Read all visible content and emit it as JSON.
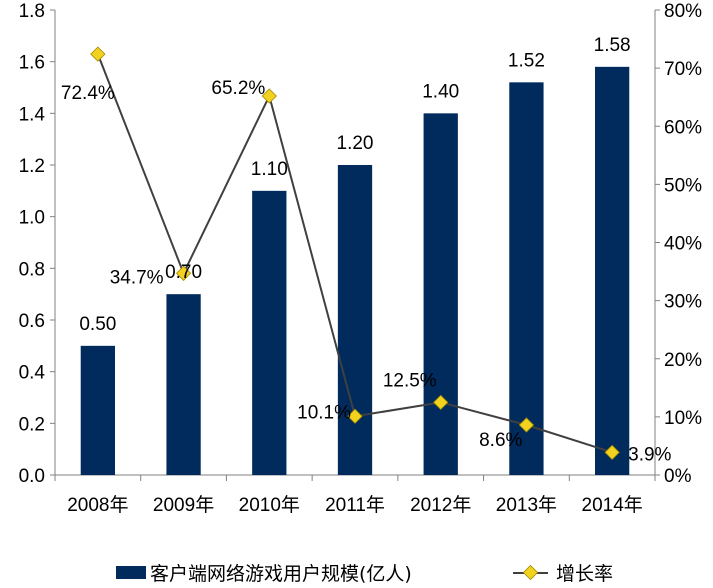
{
  "chart_data": {
    "type": "bar+line",
    "categories": [
      "2008年",
      "2009年",
      "2010年",
      "2011年",
      "2012年",
      "2013年",
      "2014年"
    ],
    "series": [
      {
        "name": "客户端网络游戏用户规模(亿人)",
        "type": "bar",
        "axis": "left",
        "color": "#002b5c",
        "values": [
          0.5,
          0.7,
          1.1,
          1.2,
          1.4,
          1.52,
          1.58
        ],
        "labels": [
          "0.50",
          "0.70",
          "1.10",
          "1.20",
          "1.40",
          "1.52",
          "1.58"
        ]
      },
      {
        "name": "增长率",
        "type": "line",
        "axis": "right",
        "line_color": "#404040",
        "marker_color": "#f2d21f",
        "values": [
          72.4,
          34.7,
          65.2,
          10.1,
          12.5,
          8.6,
          3.9
        ],
        "labels": [
          "72.4%",
          "34.7%",
          "65.2%",
          "10.1%",
          "12.5%",
          "8.6%",
          "3.9%"
        ]
      }
    ],
    "y_left": {
      "min": 0,
      "max": 1.8,
      "ticks": [
        "0.0",
        "0.2",
        "0.4",
        "0.6",
        "0.8",
        "1.0",
        "1.2",
        "1.4",
        "1.6",
        "1.8"
      ]
    },
    "y_right": {
      "min": 0,
      "max": 80,
      "ticks": [
        "0%",
        "10%",
        "20%",
        "30%",
        "40%",
        "50%",
        "60%",
        "70%",
        "80%"
      ]
    },
    "grid": false,
    "legend_position": "bottom"
  }
}
